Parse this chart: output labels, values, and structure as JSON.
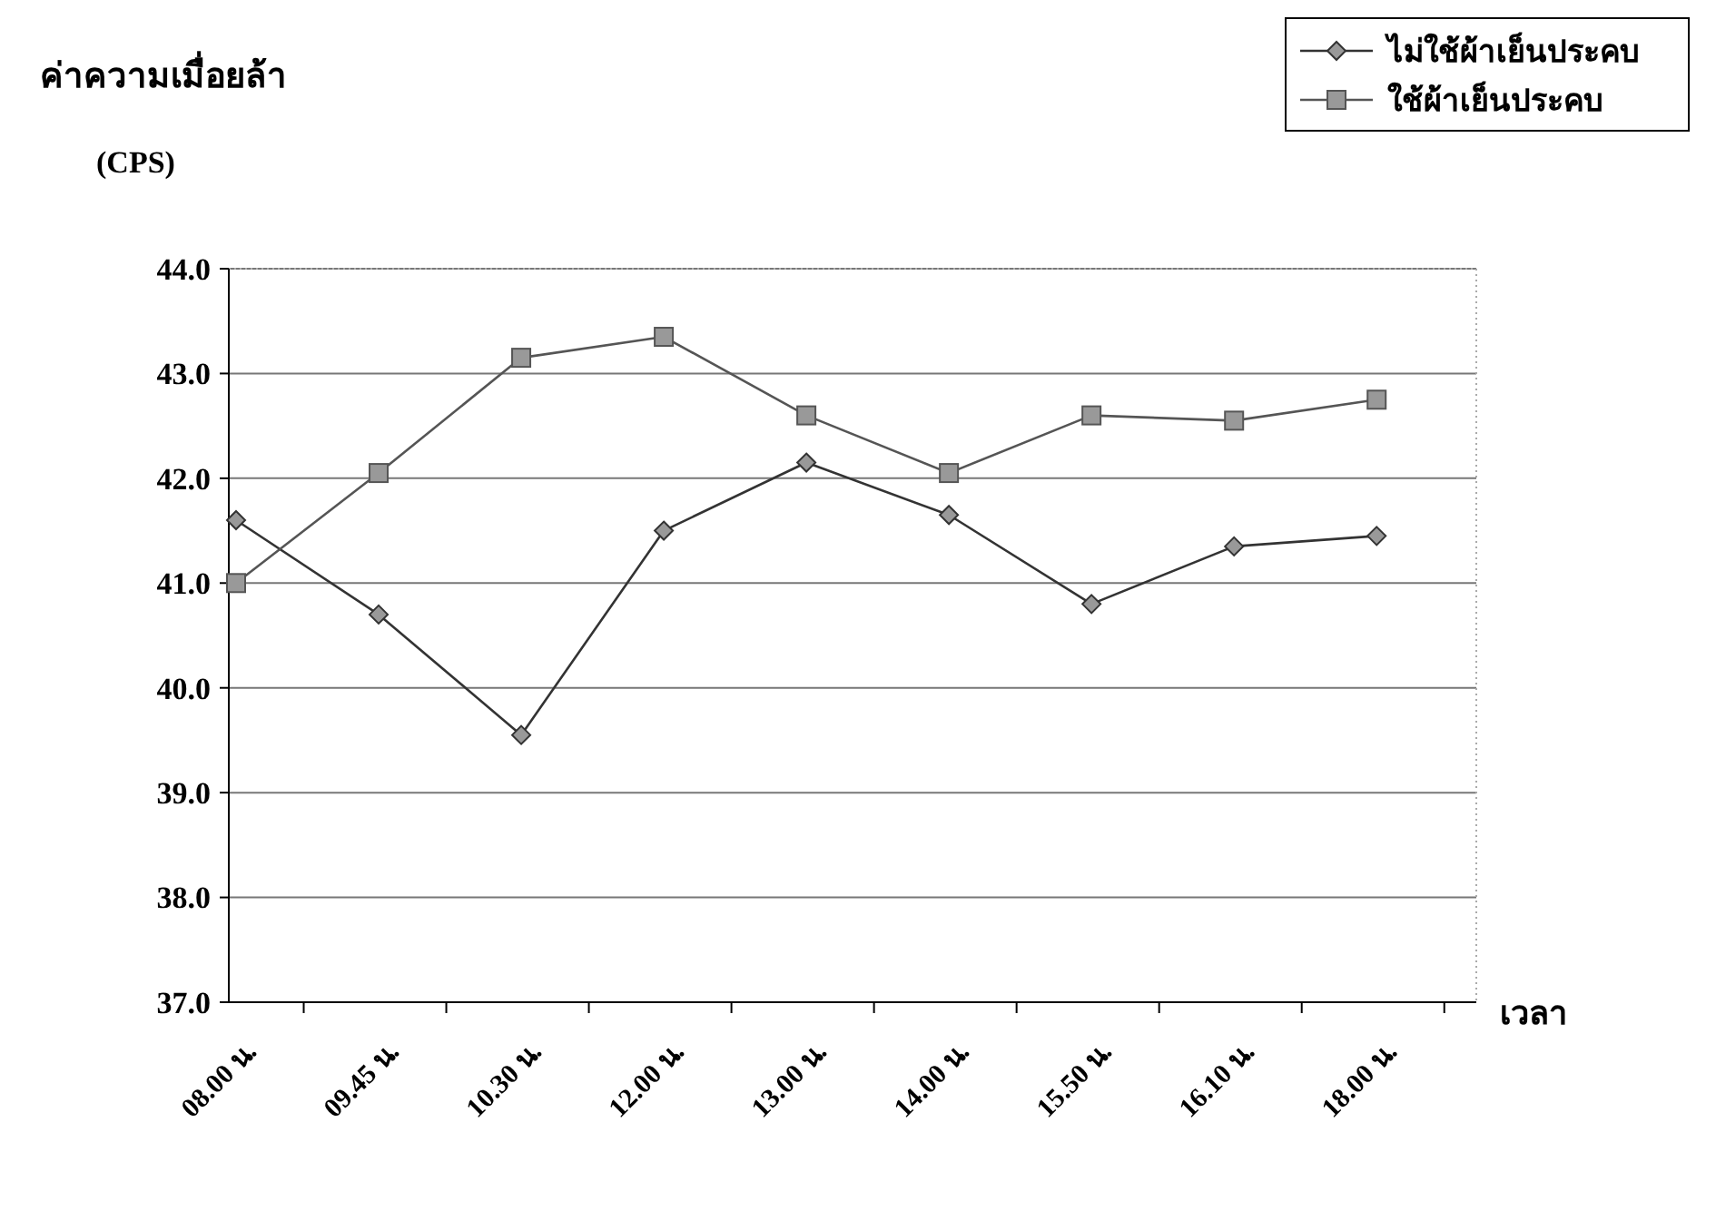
{
  "chart_data": {
    "type": "line",
    "ylabel": "ค่าความเมื่อยล้า (CPS)",
    "xlabel": "เวลา",
    "categories": [
      "08.00 น.",
      "09.45 น.",
      "10.30 น.",
      "12.00 น.",
      "13.00 น.",
      "14.00 น.",
      "15.50 น.",
      "16.10 น.",
      "18.00 น."
    ],
    "series": [
      {
        "name": "ไม่ใช้ผ้าเย็นประคบ",
        "color": "#333333",
        "marker": "diamond",
        "values": [
          41.6,
          40.7,
          39.55,
          41.5,
          42.15,
          41.65,
          40.8,
          41.35,
          41.45
        ]
      },
      {
        "name": "ใช้ผ้าเย็นประคบ",
        "color": "#555555",
        "marker": "square",
        "values": [
          41.0,
          42.05,
          43.15,
          43.35,
          42.6,
          42.05,
          42.6,
          42.55,
          42.75
        ]
      }
    ],
    "ylim": [
      37,
      44
    ],
    "yticks": [
      {
        "value": 37,
        "label": "37.0"
      },
      {
        "value": 38,
        "label": "38.0"
      },
      {
        "value": 39,
        "label": "39.0"
      },
      {
        "value": 40,
        "label": "40.0"
      },
      {
        "value": 41,
        "label": "41.0"
      },
      {
        "value": 42,
        "label": "42.0"
      },
      {
        "value": 43,
        "label": "43.0"
      },
      {
        "value": 44,
        "label": "44.0"
      }
    ],
    "grid": "y",
    "legend": "top right",
    "line_style": "solid"
  }
}
